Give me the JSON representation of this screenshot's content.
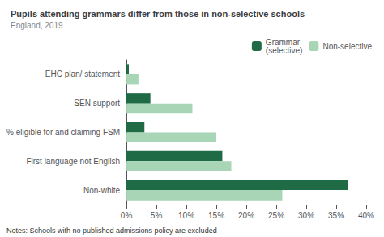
{
  "chart_data": {
    "type": "bar",
    "orientation": "horizontal",
    "title": "Pupils attending grammars differ from those in non-selective schools",
    "subtitle": "England, 2019",
    "annotations": [
      "Notes: Schools with no published admissions policy are excluded"
    ],
    "categories": [
      "Non-white",
      "First language not English",
      "% eligible for and claiming FSM",
      "SEN support",
      "EHC plan/ statement"
    ],
    "series": [
      {
        "name": "Grammar\n(selective)",
        "color": "#1e6b45",
        "values": [
          37.0,
          16.0,
          3.0,
          4.0,
          0.4
        ]
      },
      {
        "name": "Non-selective",
        "color": "#a8d5b5",
        "values": [
          26.0,
          17.5,
          15.0,
          11.0,
          2.0
        ]
      }
    ],
    "xlim": [
      0,
      40
    ],
    "xticks": [
      {
        "value": 0,
        "label": "0%"
      },
      {
        "value": 5,
        "label": "5%"
      },
      {
        "value": 10,
        "label": "10%"
      },
      {
        "value": 15,
        "label": "15%"
      },
      {
        "value": 20,
        "label": "20%"
      },
      {
        "value": 25,
        "label": "25%"
      },
      {
        "value": 30,
        "label": "30%"
      },
      {
        "value": 35,
        "label": "35%"
      },
      {
        "value": 40,
        "label": "40%"
      }
    ],
    "legend": "upper right",
    "grid": false
  }
}
